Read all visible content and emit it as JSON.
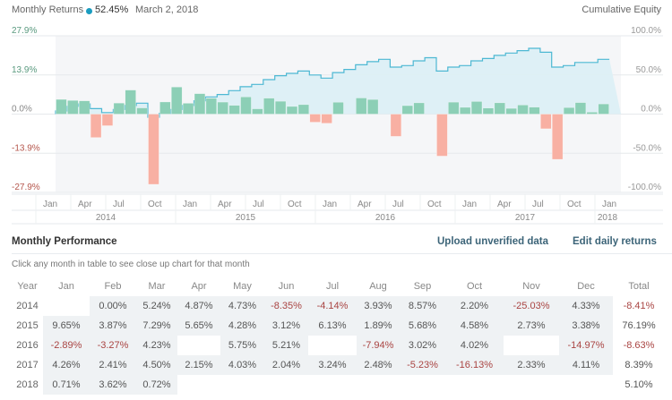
{
  "header": {
    "title": "Monthly Returns",
    "value": "52.45%",
    "date": "March 2, 2018",
    "right_title": "Cumulative Equity"
  },
  "colors": {
    "positive_bar": "#8ccfb6",
    "negative_bar": "#f8b0a3",
    "equity_line": "#4db8d3",
    "equity_fill": "#dbf0f5",
    "accent_dot": "#1a9cc0",
    "link": "#3c6478"
  },
  "chart_data": {
    "type": "bar",
    "title": "Monthly Returns",
    "left_axis": {
      "ticks": [
        "27.9%",
        "13.9%",
        "0.0%",
        "-13.9%",
        "-27.9%"
      ],
      "range": [
        -27.9,
        27.9
      ]
    },
    "right_axis": {
      "label": "Cumulative Equity",
      "ticks": [
        "100.0%",
        "50.0%",
        "0.0%",
        "-50.0%",
        "-100.0%"
      ],
      "range": [
        -100,
        100
      ]
    },
    "x_month_ticks": [
      "Jan",
      "Apr",
      "Jul",
      "Oct",
      "Jan",
      "Apr",
      "Jul",
      "Oct",
      "Jan",
      "Apr",
      "Jul",
      "Oct",
      "Jan",
      "Apr",
      "Jul",
      "Oct",
      "Jan"
    ],
    "x_year_ticks": [
      "2014",
      "2015",
      "2016",
      "2017",
      "2018"
    ],
    "months": [
      "2014-02",
      "2014-03",
      "2014-04",
      "2014-05",
      "2014-06",
      "2014-07",
      "2014-08",
      "2014-09",
      "2014-10",
      "2014-11",
      "2014-12",
      "2015-01",
      "2015-02",
      "2015-03",
      "2015-04",
      "2015-05",
      "2015-06",
      "2015-07",
      "2015-08",
      "2015-09",
      "2015-10",
      "2015-11",
      "2015-12",
      "2016-01",
      "2016-02",
      "2016-03",
      "2016-04",
      "2016-05",
      "2016-06",
      "2016-07",
      "2016-08",
      "2016-09",
      "2016-10",
      "2016-11",
      "2016-12",
      "2017-01",
      "2017-02",
      "2017-03",
      "2017-04",
      "2017-05",
      "2017-06",
      "2017-07",
      "2017-08",
      "2017-09",
      "2017-10",
      "2017-11",
      "2017-12",
      "2018-01",
      "2018-02"
    ],
    "monthly_returns": [
      0.0,
      5.24,
      4.87,
      4.73,
      -8.35,
      -4.14,
      3.93,
      8.57,
      2.2,
      -25.03,
      4.33,
      9.65,
      3.87,
      7.29,
      5.65,
      4.28,
      3.12,
      6.13,
      1.89,
      5.68,
      4.58,
      2.73,
      3.38,
      -2.89,
      -3.27,
      4.23,
      0,
      5.75,
      5.21,
      0,
      -7.94,
      3.02,
      4.02,
      0,
      -14.97,
      4.26,
      2.41,
      4.5,
      2.15,
      4.03,
      2.04,
      3.24,
      2.48,
      -5.23,
      -16.13,
      2.33,
      4.11,
      0.71,
      3.62
    ],
    "cumulative_equity": [
      0,
      4,
      10,
      13,
      7,
      2,
      6,
      11,
      14,
      -4,
      1,
      6,
      11,
      17,
      22,
      25,
      30,
      35,
      38,
      44,
      49,
      52,
      55,
      50,
      46,
      53,
      57,
      63,
      67,
      70,
      60,
      62,
      68,
      72,
      55,
      60,
      62,
      68,
      71,
      75,
      78,
      81,
      84,
      79,
      60,
      62,
      66,
      66,
      70
    ]
  },
  "performance": {
    "title": "Monthly Performance",
    "upload_label": "Upload unverified data",
    "edit_label": "Edit daily returns",
    "hint": "Click any month in table to see close up chart for that month",
    "columns": [
      "Year",
      "Jan",
      "Feb",
      "Mar",
      "Apr",
      "May",
      "Jun",
      "Jul",
      "Aug",
      "Sep",
      "Oct",
      "Nov",
      "Dec",
      "Total"
    ],
    "rows": [
      {
        "year": "2014",
        "cells": [
          "",
          "0.00%",
          "5.24%",
          "4.87%",
          "4.73%",
          "-8.35%",
          "-4.14%",
          "3.93%",
          "8.57%",
          "2.20%",
          "-25.03%",
          "4.33%"
        ],
        "total": "-8.41%"
      },
      {
        "year": "2015",
        "cells": [
          "9.65%",
          "3.87%",
          "7.29%",
          "5.65%",
          "4.28%",
          "3.12%",
          "6.13%",
          "1.89%",
          "5.68%",
          "4.58%",
          "2.73%",
          "3.38%"
        ],
        "total": "76.19%"
      },
      {
        "year": "2016",
        "cells": [
          "-2.89%",
          "-3.27%",
          "4.23%",
          "",
          "5.75%",
          "5.21%",
          "",
          "-7.94%",
          "3.02%",
          "4.02%",
          "",
          "-14.97%"
        ],
        "total": "-8.63%"
      },
      {
        "year": "2017",
        "cells": [
          "4.26%",
          "2.41%",
          "4.50%",
          "2.15%",
          "4.03%",
          "2.04%",
          "3.24%",
          "2.48%",
          "-5.23%",
          "-16.13%",
          "2.33%",
          "4.11%"
        ],
        "total": "8.39%"
      },
      {
        "year": "2018",
        "cells": [
          "0.71%",
          "3.62%",
          "0.72%",
          "",
          "",
          "",
          "",
          "",
          "",
          "",
          "",
          ""
        ],
        "total": "5.10%"
      }
    ]
  }
}
